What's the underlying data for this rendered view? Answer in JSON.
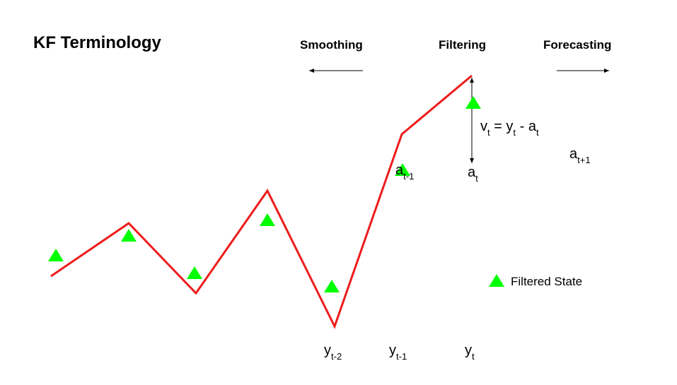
{
  "title": "KF Terminology",
  "headers": {
    "smoothing": "Smoothing",
    "filtering": "Filtering",
    "forecasting": "Forecasting"
  },
  "observation_labels": [
    {
      "base": "y",
      "sub": "t-2"
    },
    {
      "base": "y",
      "sub": "t-1"
    },
    {
      "base": "y",
      "sub": "t"
    }
  ],
  "state_labels": {
    "prev": {
      "base": "a",
      "sub": "t-1"
    },
    "curr": {
      "base": "a",
      "sub": "t"
    },
    "next": {
      "base": "a",
      "sub": "t+1"
    }
  },
  "innovation": {
    "v": "v",
    "v_sub": "t",
    "eq": " = ",
    "y": "y",
    "y_sub": "t",
    "minus": " - ",
    "a": "a",
    "a_sub": "t"
  },
  "legend": {
    "label": "Filtered State"
  },
  "colors": {
    "line": "#ee1c1c",
    "marker": "#00ff00",
    "text": "#000000"
  }
}
